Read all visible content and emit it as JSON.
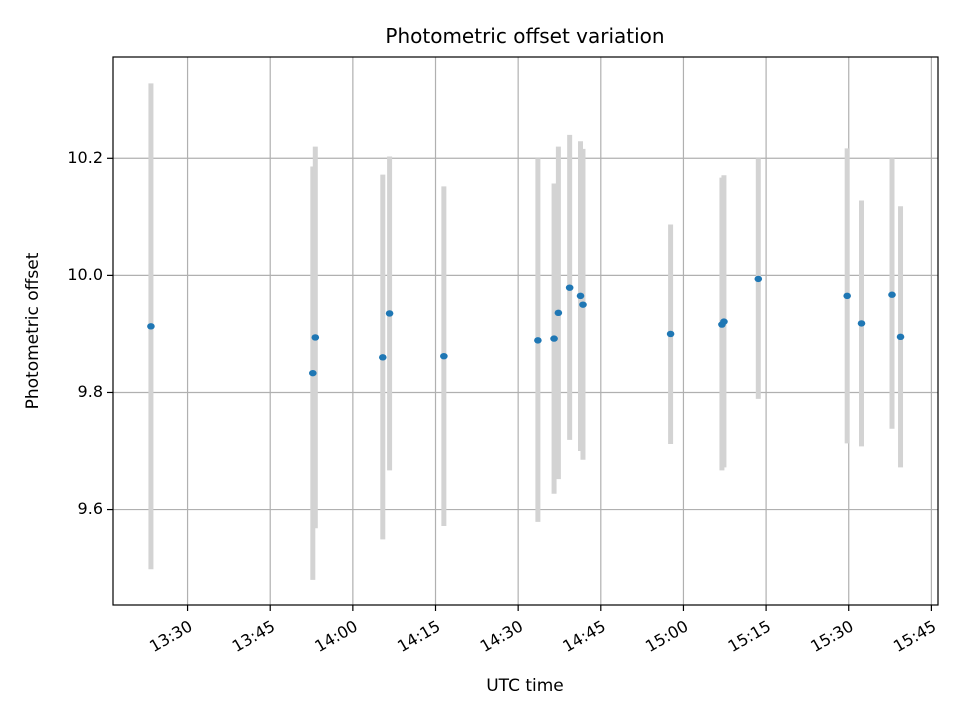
{
  "chart_data": {
    "type": "scatter",
    "title": "Photometric offset variation",
    "xlabel": "UTC time",
    "ylabel": "Photometric offset",
    "x_ticks": [
      "13:30",
      "13:45",
      "14:00",
      "14:15",
      "14:30",
      "14:45",
      "15:00",
      "15:15",
      "15:30",
      "15:45"
    ],
    "y_ticks": [
      "9.6",
      "9.8",
      "10.0",
      "10.2"
    ],
    "xlim": [
      "13:16:28",
      "15:46:12"
    ],
    "ylim": [
      9.437,
      10.373
    ],
    "grid": true,
    "legend": "none",
    "point_color": "#1f77b4",
    "errorbar_color": "#d3d3d3",
    "points": [
      {
        "x": "13:23:21",
        "y": 9.913,
        "ylow": 9.498,
        "yhigh": 10.328
      },
      {
        "x": "13:52:44",
        "y": 9.833,
        "ylow": 9.48,
        "yhigh": 10.186
      },
      {
        "x": "13:53:11",
        "y": 9.894,
        "ylow": 9.568,
        "yhigh": 10.22
      },
      {
        "x": "14:05:26",
        "y": 9.86,
        "ylow": 9.549,
        "yhigh": 10.172
      },
      {
        "x": "14:06:40",
        "y": 9.935,
        "ylow": 9.667,
        "yhigh": 10.203
      },
      {
        "x": "14:16:31",
        "y": 9.862,
        "ylow": 9.572,
        "yhigh": 10.152
      },
      {
        "x": "14:33:35",
        "y": 9.889,
        "ylow": 9.579,
        "yhigh": 10.2
      },
      {
        "x": "14:36:31",
        "y": 9.892,
        "ylow": 9.627,
        "yhigh": 10.157
      },
      {
        "x": "14:37:18",
        "y": 9.936,
        "ylow": 9.652,
        "yhigh": 10.22
      },
      {
        "x": "14:39:21",
        "y": 9.979,
        "ylow": 9.719,
        "yhigh": 10.24
      },
      {
        "x": "14:41:19",
        "y": 9.965,
        "ylow": 9.7,
        "yhigh": 10.229
      },
      {
        "x": "14:41:46",
        "y": 9.95,
        "ylow": 9.685,
        "yhigh": 10.216
      },
      {
        "x": "14:57:40",
        "y": 9.9,
        "ylow": 9.712,
        "yhigh": 10.087
      },
      {
        "x": "15:06:59",
        "y": 9.916,
        "ylow": 9.667,
        "yhigh": 10.167
      },
      {
        "x": "15:07:21",
        "y": 9.921,
        "ylow": 9.672,
        "yhigh": 10.171
      },
      {
        "x": "15:13:35",
        "y": 9.994,
        "ylow": 9.789,
        "yhigh": 10.2
      },
      {
        "x": "15:29:43",
        "y": 9.965,
        "ylow": 9.713,
        "yhigh": 10.217
      },
      {
        "x": "15:32:19",
        "y": 9.918,
        "ylow": 9.708,
        "yhigh": 10.128
      },
      {
        "x": "15:37:51",
        "y": 9.967,
        "ylow": 9.738,
        "yhigh": 10.2
      },
      {
        "x": "15:39:24",
        "y": 9.895,
        "ylow": 9.672,
        "yhigh": 10.118
      }
    ]
  }
}
